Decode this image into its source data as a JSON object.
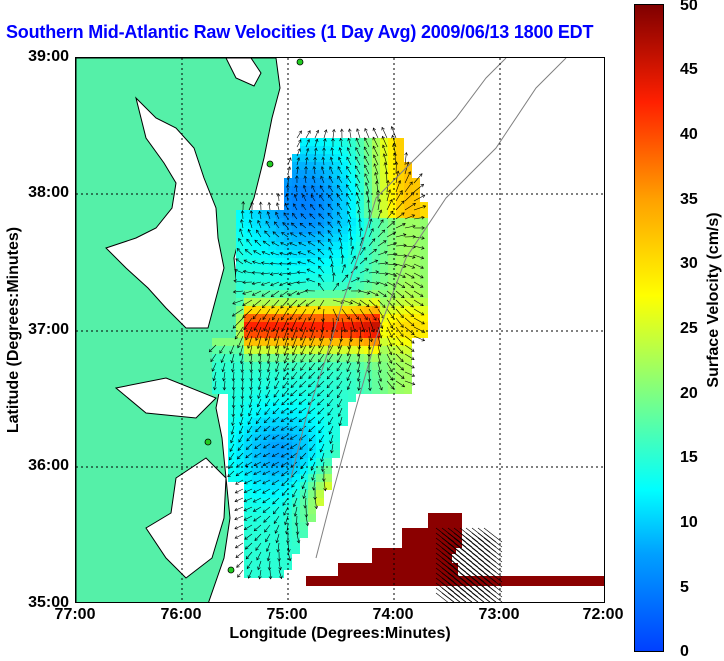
{
  "title": "Southern Mid-Atlantic Raw Velocities (1 Day Avg) 2009/06/13 1800 EDT",
  "x_axis": {
    "label": "Longitude (Degrees:Minutes)",
    "ticks": [
      "77:00",
      "76:00",
      "75:00",
      "74:00",
      "73:00",
      "72:00"
    ]
  },
  "y_axis": {
    "label": "Latitude (Degrees:Minutes)",
    "ticks": [
      "39:00",
      "38:00",
      "37:00",
      "36:00",
      "35:00"
    ]
  },
  "colorbar": {
    "label": "Surface Velocity (cm/s)",
    "ticks": [
      "50",
      "45",
      "40",
      "35",
      "30",
      "25",
      "20",
      "15",
      "10",
      "5",
      "0"
    ],
    "range": [
      0,
      50
    ]
  },
  "map": {
    "lon_range": [
      -77,
      -72
    ],
    "lat_range": [
      35,
      39
    ],
    "land_color": "#55f0a8",
    "grid": true
  }
}
